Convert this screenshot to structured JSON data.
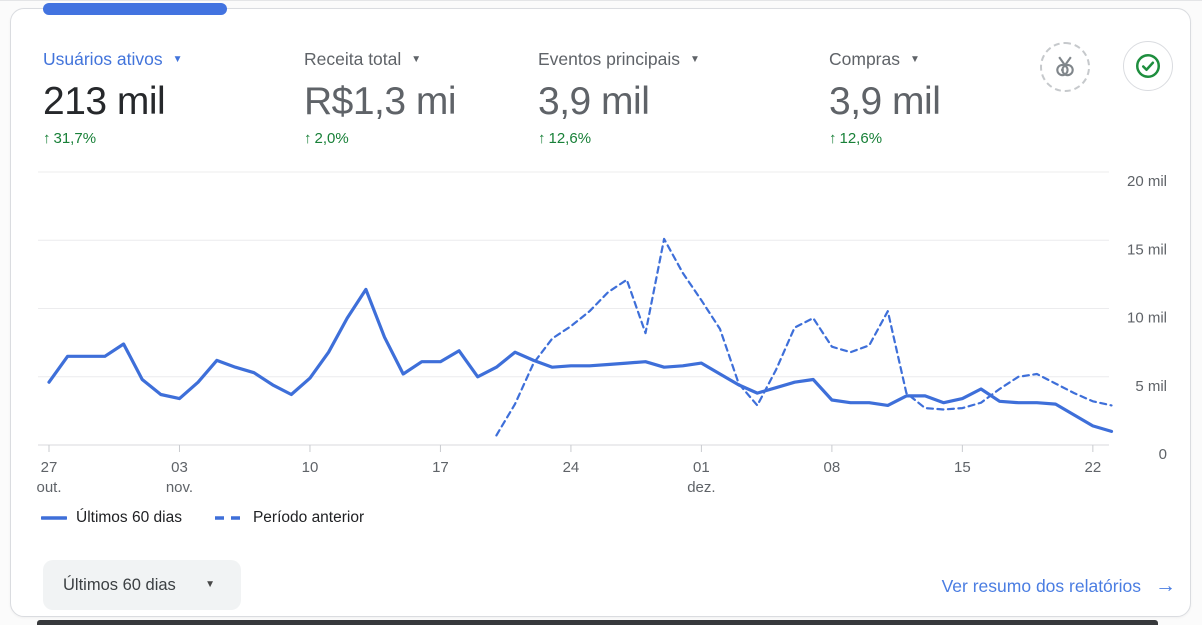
{
  "colors": {
    "accent_blue": "#4274db",
    "line_blue": "#3e6fd9",
    "link_blue": "#4a7de2",
    "positive_green": "#188038"
  },
  "metrics": [
    {
      "label": "Usuários ativos",
      "value": "213 mil",
      "delta": "31,7%",
      "selected": true
    },
    {
      "label": "Receita total",
      "value": "R$1,3 mi",
      "delta": "2,0%",
      "selected": false
    },
    {
      "label": "Eventos principais",
      "value": "3,9 mil",
      "delta": "12,6%",
      "selected": false
    },
    {
      "label": "Compras",
      "value": "3,9 mil",
      "delta": "12,6%",
      "selected": false
    }
  ],
  "badges": [
    {
      "name": "benchmark-medal-badge"
    },
    {
      "name": "status-check-badge"
    }
  ],
  "legend": [
    {
      "label": "Últimos 60 dias",
      "style": "solid"
    },
    {
      "label": "Período anterior",
      "style": "dashed"
    }
  ],
  "footer": {
    "date_range_label": "Últimos 60 dias",
    "summary_link_label": "Ver resumo dos relatórios"
  },
  "chart_data": {
    "type": "line",
    "title": "",
    "xlabel": "",
    "ylabel": "",
    "value_unit": "mil (thousands of active users)",
    "ylim": [
      0,
      20
    ],
    "grid": "horizontal",
    "legend_position": "bottom-left",
    "line_color": "#3e6fd9",
    "y_ticks": [
      {
        "v": 0,
        "label": "0"
      },
      {
        "v": 5,
        "label": "5 mil"
      },
      {
        "v": 10,
        "label": "10 mil"
      },
      {
        "v": 15,
        "label": "15 mil"
      },
      {
        "v": 20,
        "label": "20 mil"
      }
    ],
    "x_ticks": [
      {
        "day": 0,
        "l1": "27",
        "l2": "out."
      },
      {
        "day": 7,
        "l1": "03",
        "l2": "nov."
      },
      {
        "day": 14,
        "l1": "10"
      },
      {
        "day": 21,
        "l1": "17"
      },
      {
        "day": 28,
        "l1": "24"
      },
      {
        "day": 35,
        "l1": "01",
        "l2": "dez."
      },
      {
        "day": 42,
        "l1": "08"
      },
      {
        "day": 49,
        "l1": "15"
      },
      {
        "day": 56,
        "l1": "22"
      }
    ],
    "series": [
      {
        "name": "Últimos 60 dias",
        "style": "solid",
        "values": [
          4.6,
          6.5,
          6.5,
          6.5,
          7.4,
          4.8,
          3.7,
          3.4,
          4.6,
          6.2,
          5.7,
          5.3,
          4.4,
          3.7,
          4.9,
          6.8,
          9.3,
          11.4,
          7.9,
          5.2,
          6.1,
          6.1,
          6.9,
          5.0,
          5.7,
          6.8,
          6.2,
          5.7,
          5.8,
          5.8,
          5.9,
          6.0,
          6.1,
          5.7,
          5.8,
          6.0,
          5.2,
          4.4,
          3.8,
          4.2,
          4.6,
          4.8,
          3.3,
          3.1,
          3.1,
          2.9,
          3.6,
          3.6,
          3.1,
          3.4,
          4.1,
          3.2,
          3.1,
          3.1,
          3.0,
          2.2,
          1.4,
          1.0
        ]
      },
      {
        "name": "Período anterior",
        "style": "dashed",
        "values": [
          null,
          null,
          null,
          null,
          null,
          null,
          null,
          null,
          null,
          null,
          null,
          null,
          null,
          null,
          null,
          null,
          null,
          null,
          null,
          null,
          null,
          null,
          null,
          null,
          0.7,
          3.0,
          6.0,
          7.8,
          8.7,
          9.8,
          11.2,
          12.1,
          8.2,
          15.1,
          12.6,
          10.6,
          8.5,
          4.5,
          2.9,
          5.5,
          8.6,
          9.3,
          7.2,
          6.8,
          7.3,
          9.8,
          3.8,
          2.7,
          2.6,
          2.7,
          3.1,
          4.1,
          5.0,
          5.2,
          4.5,
          3.8,
          3.2,
          2.9
        ]
      }
    ]
  }
}
